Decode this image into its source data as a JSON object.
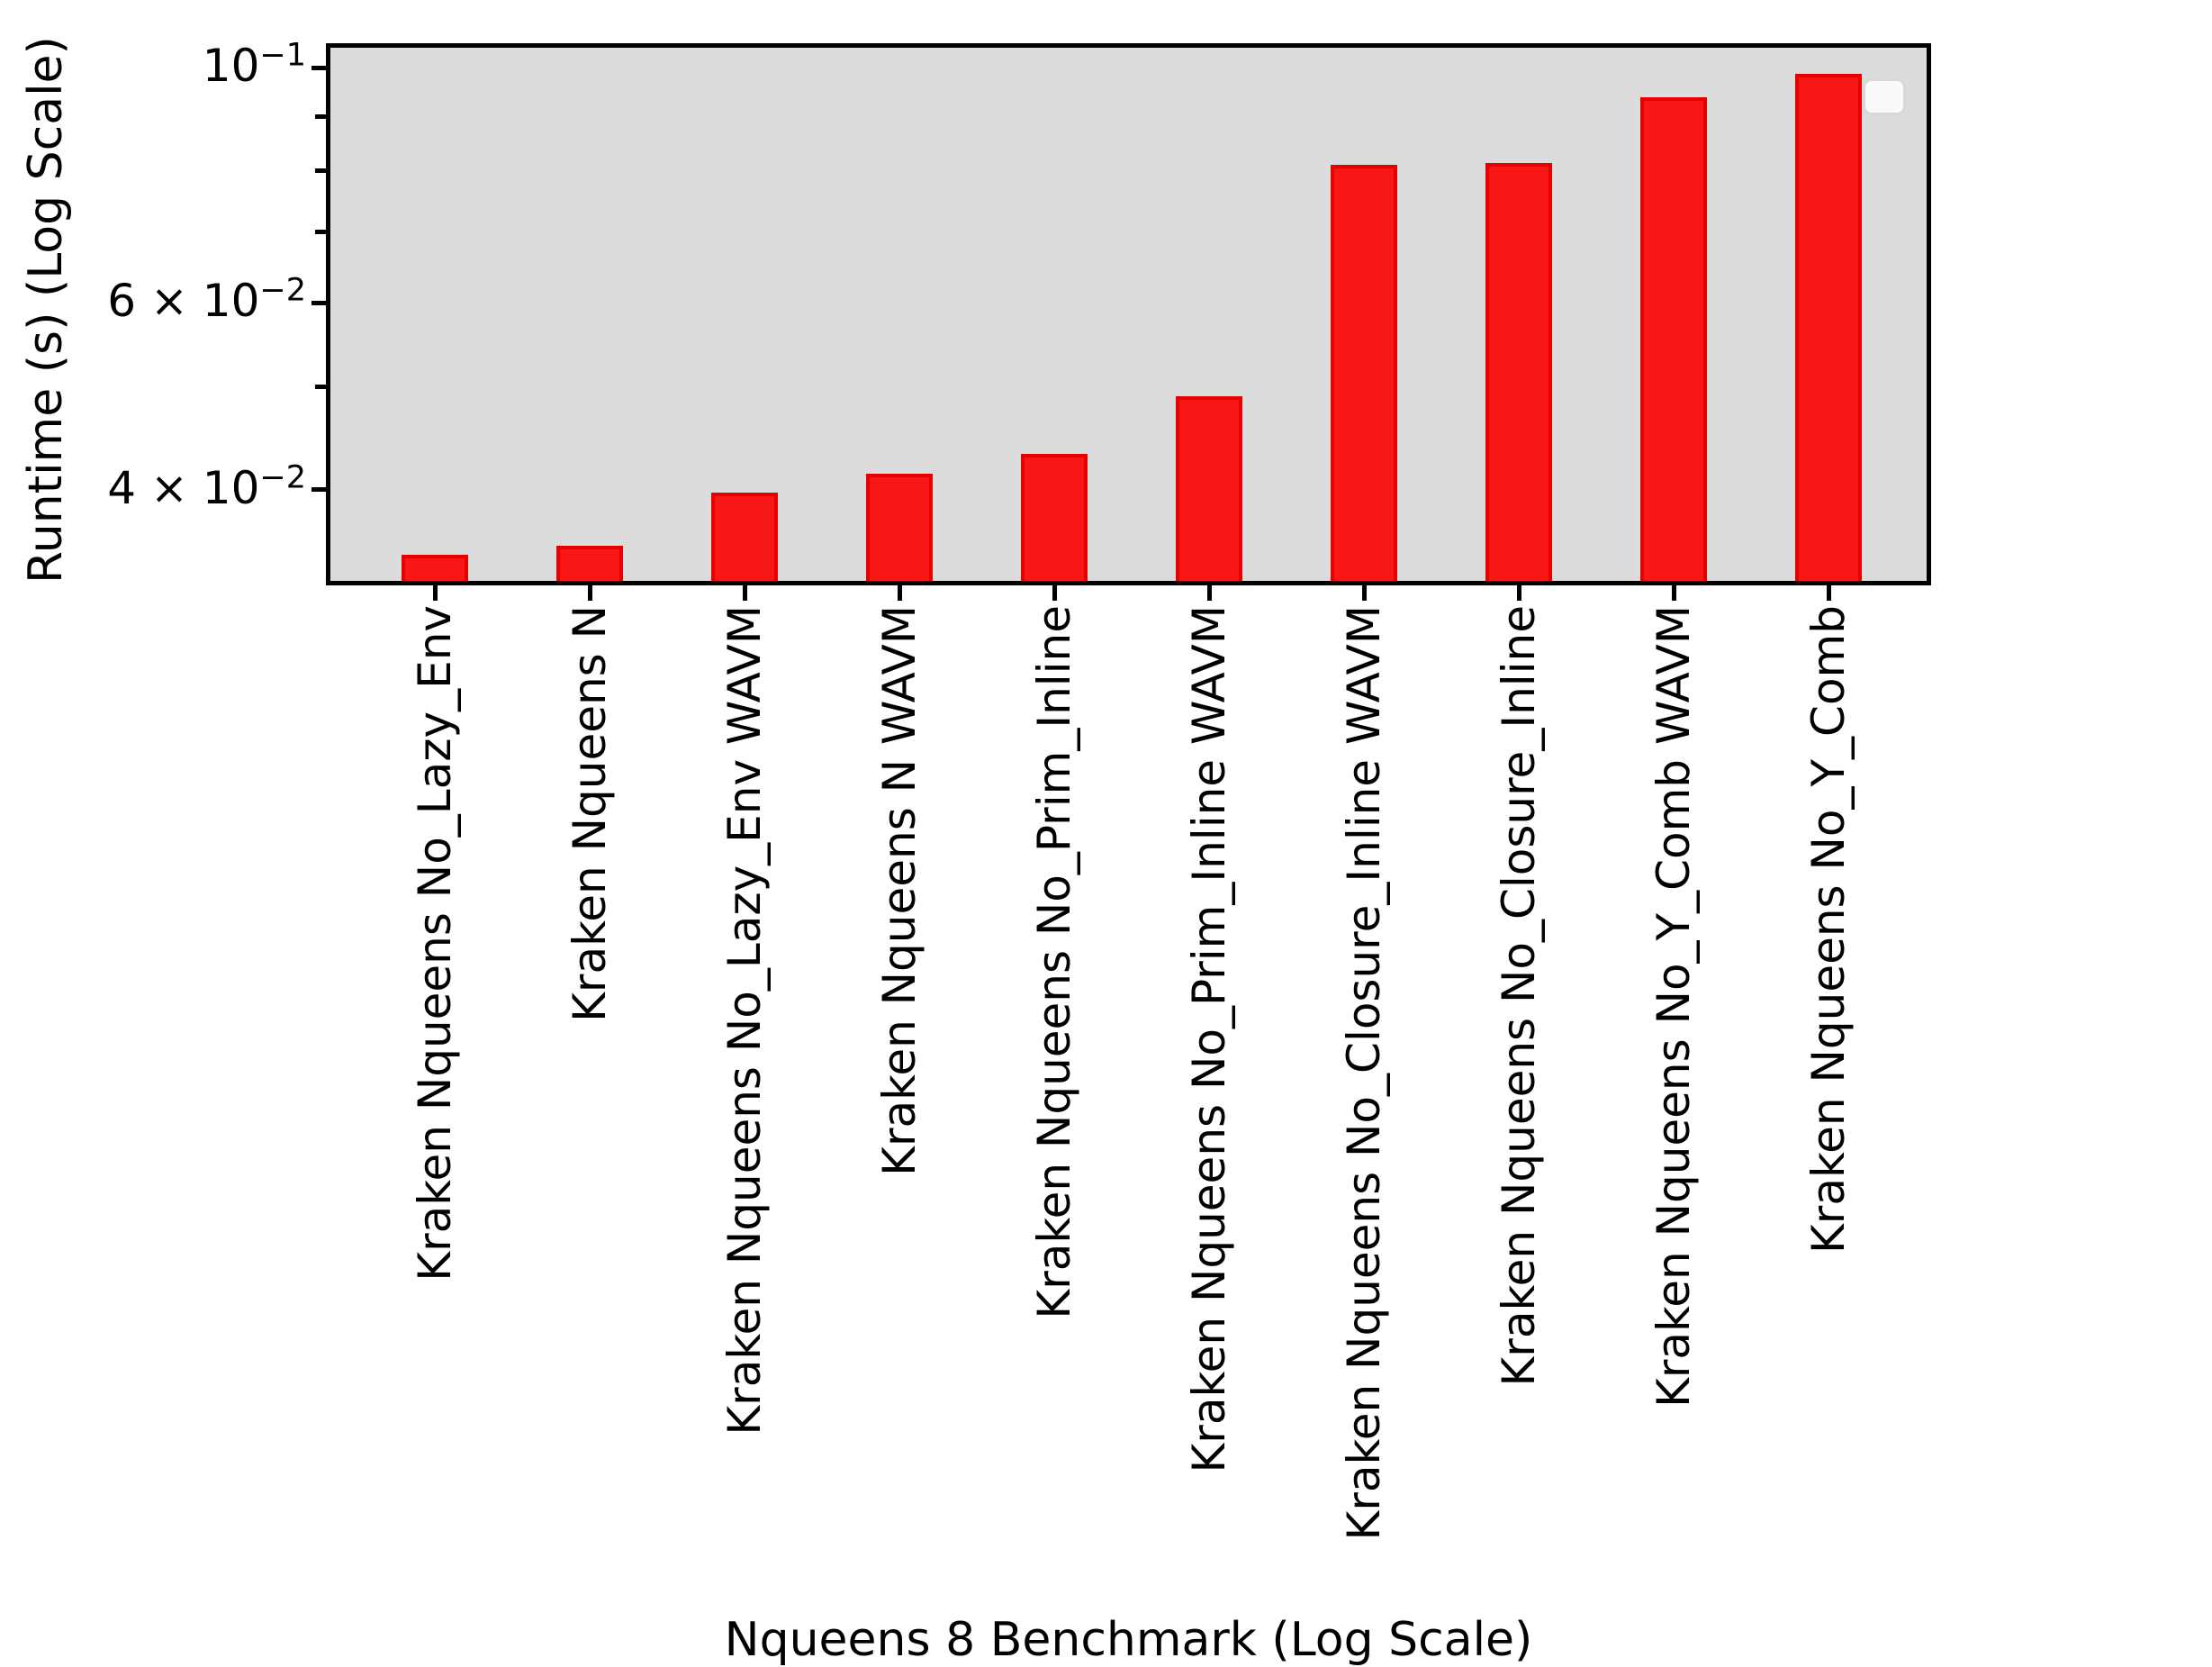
{
  "figure": {
    "background": "#ffffff",
    "plot_background": "#dcdcdc",
    "spine_color": "#000000",
    "bar_fill": "#f71717",
    "bar_edge": "#e80000",
    "legend": {
      "visible": true,
      "entries": [],
      "background": "#fafafa",
      "border_color": "#d8d8d8"
    }
  },
  "chart_data": {
    "type": "bar",
    "title": "",
    "xlabel": "Nqueens 8 Benchmark (Log Scale)",
    "ylabel": "Runtime (s) (Log Scale)",
    "yscale": "log",
    "ylim": [
      0.0328,
      0.1045
    ],
    "grid": false,
    "legend_position": "upper right",
    "categories": [
      "Kraken Nqueens No_Lazy_Env",
      "Kraken Nqueens N",
      "Kraken Nqueens No_Lazy_Env WAVM",
      "Kraken Nqueens N WAVM",
      "Kraken Nqueens No_Prim_Inline",
      "Kraken Nqueens No_Prim_Inline WAVM",
      "Kraken Nqueens No_Closure_Inline WAVM",
      "Kraken Nqueens No_Closure_Inline",
      "Kraken Nqueens No_Y_Comb WAVM",
      "Kraken Nqueens No_Y_Comb"
    ],
    "values": [
      0.0347,
      0.0354,
      0.0397,
      0.0414,
      0.0432,
      0.049,
      0.0811,
      0.0814,
      0.0939,
      0.0988
    ],
    "yticks_major": [
      {
        "value": 0.1,
        "prefix": "",
        "base": "10",
        "exp": "−1"
      },
      {
        "value": 0.06,
        "prefix": "6 × ",
        "base": "10",
        "exp": "−2"
      },
      {
        "value": 0.04,
        "prefix": "4 × ",
        "base": "10",
        "exp": "−2"
      }
    ],
    "yticks_minor": [
      0.09,
      0.08,
      0.07,
      0.05
    ]
  }
}
